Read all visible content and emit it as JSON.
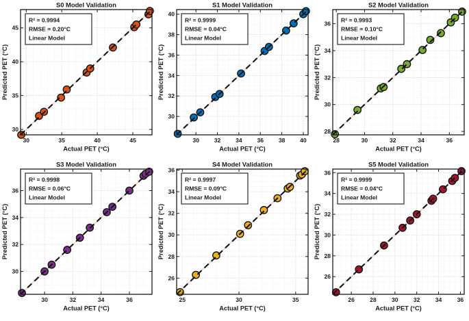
{
  "figure": {
    "background": "#ffffff",
    "xlabel": "Actual PET (°C)",
    "ylabel": "Predicted PET (°C)",
    "axis_color": "#1a1a1a",
    "major_grid_color": "#d4d4d4",
    "minor_grid_color": "#ebebeb",
    "fit_line_color": "#f5bdb0",
    "dash_line_color": "#141414"
  },
  "chart_data": [
    {
      "id": "s0",
      "type": "scatter",
      "title": "S0 Model Validation",
      "color": "#D95319",
      "legend": {
        "r2": "R² = 0.9994",
        "rmse": "RMSE = 0.20°C",
        "model": "Linear Model"
      },
      "r2": 0.9994,
      "rmse_c": 0.2,
      "xlim": [
        29.2,
        47.7
      ],
      "ylim": [
        29.2,
        47.7
      ],
      "xticks": [
        30,
        35,
        40,
        45
      ],
      "yticks": [
        30,
        35,
        40,
        45
      ],
      "x_minor": 1,
      "y_minor": 1,
      "points": [
        [
          29.3,
          29.2
        ],
        [
          31.8,
          32.0
        ],
        [
          32.5,
          32.6
        ],
        [
          34.9,
          34.7
        ],
        [
          35.7,
          35.9
        ],
        [
          38.5,
          38.4
        ],
        [
          39.0,
          39.0
        ],
        [
          42.2,
          42.1
        ],
        [
          45.2,
          45.1
        ],
        [
          45.5,
          45.5
        ],
        [
          47.2,
          47.0
        ],
        [
          47.4,
          47.5
        ]
      ]
    },
    {
      "id": "s1",
      "type": "scatter",
      "title": "S1 Model Validation",
      "color": "#0072BD",
      "legend": {
        "r2": "R² = 0.9999",
        "rmse": "RMSE = 0.04°C",
        "model": "Linear Model"
      },
      "r2": 0.9999,
      "rmse_c": 0.04,
      "xlim": [
        28.2,
        40.45
      ],
      "ylim": [
        28.2,
        40.45
      ],
      "xticks": [
        30,
        32,
        34,
        36,
        38,
        40
      ],
      "yticks": [
        30,
        32,
        34,
        36,
        38,
        40
      ],
      "x_minor": 0.5,
      "y_minor": 0.5,
      "points": [
        [
          28.3,
          28.3
        ],
        [
          29.8,
          29.9
        ],
        [
          30.4,
          30.4
        ],
        [
          31.8,
          31.9
        ],
        [
          32.2,
          32.2
        ],
        [
          34.2,
          34.2
        ],
        [
          36.4,
          36.4
        ],
        [
          36.8,
          36.8
        ],
        [
          38.4,
          38.4
        ],
        [
          39.1,
          39.1
        ],
        [
          40.0,
          40.0
        ],
        [
          40.25,
          40.3
        ]
      ]
    },
    {
      "id": "s2",
      "type": "scatter",
      "title": "S2 Model Validation",
      "color": "#77AC30",
      "legend": {
        "r2": "R² = 0.9993",
        "rmse": "RMSE = 0.10°C",
        "model": "Linear Model"
      },
      "r2": 0.9993,
      "rmse_c": 0.1,
      "xlim": [
        27.75,
        37.05
      ],
      "ylim": [
        27.75,
        37.05
      ],
      "xticks": [
        28,
        30,
        32,
        34,
        36
      ],
      "yticks": [
        28,
        30,
        32,
        34,
        36
      ],
      "x_minor": 0.5,
      "y_minor": 0.5,
      "points": [
        [
          27.9,
          27.8
        ],
        [
          29.5,
          29.6
        ],
        [
          31.15,
          31.2
        ],
        [
          31.35,
          31.3
        ],
        [
          32.6,
          32.65
        ],
        [
          33.0,
          33.0
        ],
        [
          34.1,
          34.05
        ],
        [
          34.65,
          34.8
        ],
        [
          35.4,
          35.3
        ],
        [
          36.1,
          36.1
        ],
        [
          36.4,
          36.45
        ],
        [
          36.9,
          36.9
        ]
      ]
    },
    {
      "id": "s3",
      "type": "scatter",
      "title": "S3 Model Validation",
      "color": "#7E2F8E",
      "legend": {
        "r2": "R² = 0.9998",
        "rmse": "RMSE = 0.06°C",
        "model": "Linear Model"
      },
      "r2": 0.9998,
      "rmse_c": 0.06,
      "xlim": [
        28.3,
        37.6
      ],
      "ylim": [
        28.3,
        37.6
      ],
      "xticks": [
        30,
        32,
        34,
        36
      ],
      "yticks": [
        30,
        32,
        34,
        36
      ],
      "x_minor": 0.5,
      "y_minor": 0.5,
      "points": [
        [
          28.4,
          28.4
        ],
        [
          30.0,
          30.0
        ],
        [
          30.5,
          30.5
        ],
        [
          31.6,
          31.6
        ],
        [
          32.5,
          32.5
        ],
        [
          33.2,
          33.25
        ],
        [
          34.4,
          34.4
        ],
        [
          34.8,
          34.8
        ],
        [
          36.0,
          36.0
        ],
        [
          37.0,
          37.1
        ],
        [
          37.15,
          37.25
        ],
        [
          37.4,
          37.4
        ]
      ]
    },
    {
      "id": "s4",
      "type": "scatter",
      "title": "S4 Model Validation",
      "color": "#EDB120",
      "legend": {
        "r2": "R² = 0.9997",
        "rmse": "RMSE = 0.09°C",
        "model": "Linear Model"
      },
      "r2": 0.9997,
      "rmse_c": 0.09,
      "xlim": [
        24.5,
        36.1
      ],
      "ylim": [
        24.5,
        36.1
      ],
      "xticks": [
        25,
        30,
        35
      ],
      "yticks": [
        26,
        28,
        30,
        32,
        34,
        36
      ],
      "x_minor": 1,
      "y_minor": 0.5,
      "points": [
        [
          24.8,
          24.7
        ],
        [
          26.2,
          26.3
        ],
        [
          28.0,
          28.1
        ],
        [
          30.1,
          30.1
        ],
        [
          30.8,
          30.9
        ],
        [
          32.2,
          32.3
        ],
        [
          33.4,
          33.4
        ],
        [
          34.3,
          34.3
        ],
        [
          34.5,
          34.45
        ],
        [
          35.4,
          35.5
        ],
        [
          35.55,
          35.6
        ],
        [
          35.8,
          35.9
        ]
      ]
    },
    {
      "id": "s5",
      "type": "scatter",
      "title": "S5 Model Validation",
      "color": "#A2142F",
      "legend": {
        "r2": "R² = 0.9999",
        "rmse": "RMSE = 0.04°C",
        "model": "Linear Model"
      },
      "r2": 0.9999,
      "rmse_c": 0.04,
      "xlim": [
        24.3,
        36.35
      ],
      "ylim": [
        24.3,
        36.35
      ],
      "xticks": [
        26,
        28,
        30,
        32,
        34,
        36
      ],
      "yticks": [
        26,
        28,
        30,
        32,
        34,
        36
      ],
      "x_minor": 0.5,
      "y_minor": 0.5,
      "points": [
        [
          24.6,
          24.5
        ],
        [
          26.7,
          26.7
        ],
        [
          29.0,
          29.0
        ],
        [
          30.7,
          30.7
        ],
        [
          31.4,
          31.4
        ],
        [
          32.0,
          32.0
        ],
        [
          33.35,
          33.3
        ],
        [
          33.5,
          33.5
        ],
        [
          34.4,
          34.4
        ],
        [
          35.25,
          35.2
        ],
        [
          35.5,
          35.5
        ],
        [
          36.1,
          36.15
        ]
      ]
    }
  ]
}
